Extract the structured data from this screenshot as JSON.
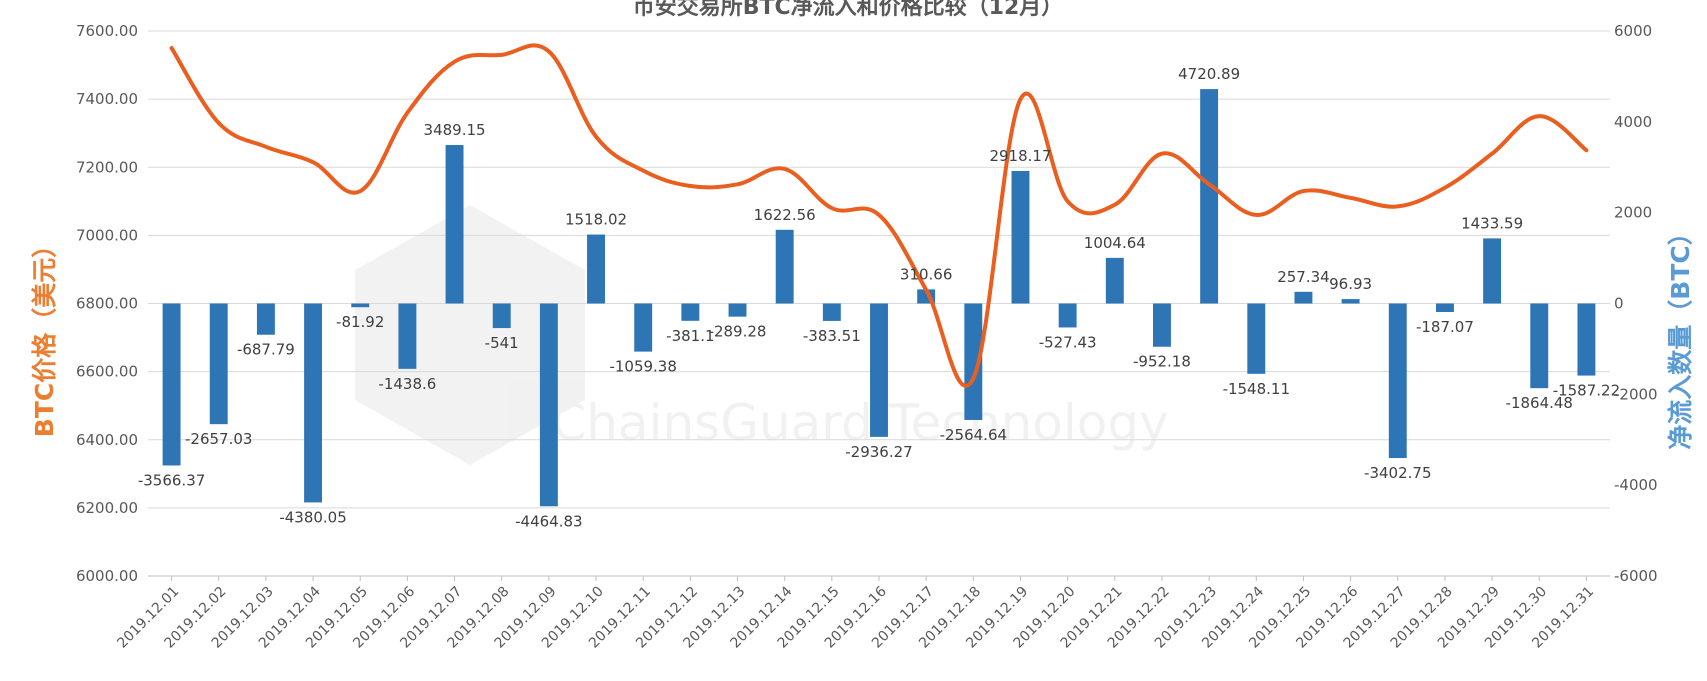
{
  "chart_data": {
    "type": "bar",
    "title": "币安交易所BTC净流入和价格比较（12月）",
    "ylabel_left": "BTC价格（美元）",
    "ylabel_right": "净流入数量（BTC）",
    "ylim_left": [
      6000,
      7600
    ],
    "ylim_right": [
      -6000,
      6000
    ],
    "yticks_left": [
      "6000.00",
      "6200.00",
      "6400.00",
      "6600.00",
      "6800.00",
      "7000.00",
      "7200.00",
      "7400.00",
      "7600.00"
    ],
    "yticks_right": [
      "-6000",
      "-4000",
      "-2000",
      "0",
      "2000",
      "4000",
      "6000"
    ],
    "grid": true,
    "watermark": "ChainsGuard Technology",
    "categories": [
      "2019.12.01",
      "2019.12.02",
      "2019.12.03",
      "2019.12.04",
      "2019.12.05",
      "2019.12.06",
      "2019.12.07",
      "2019.12.08",
      "2019.12.09",
      "2019.12.10",
      "2019.12.11",
      "2019.12.12",
      "2019.12.13",
      "2019.12.14",
      "2019.12.15",
      "2019.12.16",
      "2019.12.17",
      "2019.12.18",
      "2019.12.19",
      "2019.12.20",
      "2019.12.21",
      "2019.12.22",
      "2019.12.23",
      "2019.12.24",
      "2019.12.25",
      "2019.12.26",
      "2019.12.27",
      "2019.12.28",
      "2019.12.29",
      "2019.12.30",
      "2019.12.31"
    ],
    "series": [
      {
        "type": "bar",
        "axis": "right",
        "color": "#2E75B6",
        "values": [
          -3566.37,
          -2657.03,
          -687.79,
          -4380.05,
          -81.92,
          -1438.6,
          3489.15,
          -541,
          -4464.83,
          1518.02,
          -1059.38,
          -381.1,
          -289.28,
          1622.56,
          -383.51,
          -2936.27,
          310.66,
          -2564.64,
          2918.17,
          -527.43,
          1004.64,
          -952.18,
          4720.89,
          -1548.11,
          257.34,
          96.93,
          -3402.75,
          -187.07,
          1433.59,
          -1864.48,
          -1587.22
        ],
        "labels": [
          "-3566.37",
          "-2657.03",
          "-687.79",
          "-4380.05",
          "-81.92",
          "-1438.6",
          "3489.15",
          "-541",
          "-4464.83",
          "1518.02",
          "-1059.38",
          "-381.1",
          "-289.28",
          "1622.56",
          "-383.51",
          "-2936.27",
          "310.66",
          "-2564.64",
          "2918.17",
          "-527.43",
          "1004.64",
          "-952.18",
          "4720.89",
          "-1548.11",
          "257.34",
          "96.93",
          "-3402.75",
          "-187.07",
          "1433.59",
          "-1864.48",
          "-1587.22"
        ]
      },
      {
        "type": "line",
        "axis": "left",
        "color": "#EA5F20",
        "values": [
          7550,
          7330,
          7260,
          7215,
          7130,
          7360,
          7510,
          7530,
          7540,
          7290,
          7190,
          7145,
          7150,
          7195,
          7080,
          7060,
          6840,
          6580,
          7400,
          7100,
          7090,
          7240,
          7150,
          7060,
          7130,
          7110,
          7085,
          7140,
          7240,
          7350,
          7250
        ]
      }
    ]
  }
}
